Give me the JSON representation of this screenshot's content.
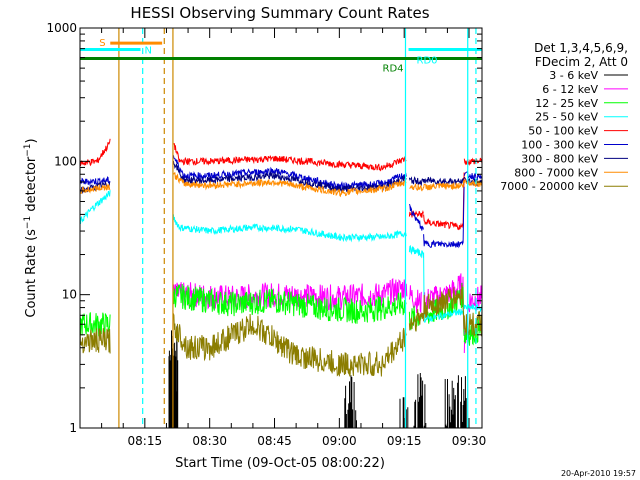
{
  "chart_data": {
    "type": "line",
    "title": "HESSI Observing Summary Count Rates",
    "xlabel": "Start Time (09-Oct-05 08:00:22)",
    "ylabel_main": "Count Rate (s",
    "ylabel_sup1": "−1",
    "ylabel_mid": " detector",
    "ylabel_sup2": "−1",
    "ylabel_end": ")",
    "y_scale": "log",
    "ylim": [
      1,
      1000
    ],
    "xlim_minutes": [
      0,
      93
    ],
    "x_ticks": [
      {
        "label": "08:15",
        "min": 15
      },
      {
        "label": "08:30",
        "min": 30
      },
      {
        "label": "08:45",
        "min": 45
      },
      {
        "label": "09:00",
        "min": 60
      },
      {
        "label": "09:15",
        "min": 75
      },
      {
        "label": "09:30",
        "min": 90
      }
    ],
    "y_ticks": [
      {
        "label": "1",
        "v": 1
      },
      {
        "label": "10",
        "v": 10
      },
      {
        "label": "100",
        "v": 100
      },
      {
        "label": "1000",
        "v": 1000
      }
    ],
    "legend_header": [
      "Det 1,3,4,5,6,9,",
      "FDecim 2, Att 0"
    ],
    "timestamp": "20-Apr-2010 19:57",
    "flags": [
      {
        "label": "S",
        "color": "#ff8c00",
        "start": 7,
        "end": 19,
        "value": 770
      },
      {
        "label": "N",
        "color": "#00ffff",
        "start": 0,
        "end": 14,
        "value": 690
      },
      {
        "label": "RD0",
        "color": "#00ffff",
        "start": 76,
        "end": 93,
        "value": 690
      },
      {
        "label": "RD4",
        "color": "#008000",
        "start": 0,
        "end": 93,
        "value": 590
      }
    ],
    "markers": [
      {
        "min": 9,
        "color": "#cc8800",
        "style": "solid"
      },
      {
        "min": 14.5,
        "color": "#00ffff",
        "style": "dashed"
      },
      {
        "min": 19.5,
        "color": "#cc8800",
        "style": "dashed"
      },
      {
        "min": 21.5,
        "color": "#cc8800",
        "style": "solid"
      },
      {
        "min": 75.3,
        "color": "#00ffff",
        "style": "solid"
      },
      {
        "min": 89.7,
        "color": "#00ffff",
        "style": "solid"
      },
      {
        "min": 91.6,
        "color": "#00ffff",
        "style": "dashed"
      }
    ],
    "segments": [
      [
        0,
        7.3
      ],
      [
        21.5,
        76
      ],
      [
        76,
        79.5
      ],
      [
        79.5,
        88.9
      ],
      [
        88.9,
        93
      ]
    ],
    "series": [
      {
        "name": "3 - 6 keV",
        "color": "#000000",
        "points": [
          [
            20.6,
            1
          ],
          [
            21.6,
            6
          ],
          [
            22.5,
            1
          ],
          [
            88.9,
            1
          ],
          [
            89.5,
            6
          ]
        ],
        "gaps": true
      },
      {
        "name": "6 - 12 keV",
        "color": "#ff00ff",
        "points": [
          [
            21.6,
            10
          ],
          [
            25,
            10
          ],
          [
            35,
            9.5
          ],
          [
            45,
            10
          ],
          [
            60,
            9.5
          ],
          [
            70,
            10
          ],
          [
            75.7,
            11.5
          ],
          [
            76.2,
            10
          ],
          [
            79,
            8.5
          ],
          [
            79.6,
            9
          ],
          [
            85,
            10
          ],
          [
            88.6,
            12
          ],
          [
            88.9,
            4
          ],
          [
            90,
            9
          ],
          [
            93,
            9.5
          ]
        ]
      },
      {
        "name": "12 - 25 keV",
        "color": "#00ff00",
        "points": [
          [
            0,
            6
          ],
          [
            7,
            6
          ],
          [
            21.6,
            10
          ],
          [
            25,
            9.5
          ],
          [
            35,
            8.5
          ],
          [
            45,
            9
          ],
          [
            55,
            8
          ],
          [
            65,
            7.5
          ],
          [
            70,
            8
          ],
          [
            75.5,
            8.5
          ],
          [
            76.2,
            6.5
          ],
          [
            79,
            7
          ],
          [
            79.6,
            7
          ],
          [
            85,
            8
          ],
          [
            88.6,
            10
          ],
          [
            88.9,
            5
          ],
          [
            93,
            5.5
          ]
        ]
      },
      {
        "name": "25 - 50 keV",
        "color": "#00ffff",
        "points": [
          [
            0,
            35
          ],
          [
            3,
            45
          ],
          [
            7,
            58
          ],
          [
            21.6,
            38
          ],
          [
            23,
            32
          ],
          [
            30,
            30
          ],
          [
            40,
            32
          ],
          [
            50,
            31
          ],
          [
            60,
            27
          ],
          [
            70,
            27
          ],
          [
            75.5,
            29
          ],
          [
            76.2,
            22
          ],
          [
            79.5,
            20
          ],
          [
            79.6,
            6.5
          ],
          [
            88.6,
            7.5
          ],
          [
            88.9,
            8
          ],
          [
            93,
            8
          ]
        ]
      },
      {
        "name": "50 - 100 keV",
        "color": "#ff0000",
        "points": [
          [
            0,
            97
          ],
          [
            4,
            100
          ],
          [
            7,
            140
          ],
          [
            21.6,
            140
          ],
          [
            23,
            100
          ],
          [
            30,
            100
          ],
          [
            45,
            105
          ],
          [
            60,
            95
          ],
          [
            70,
            90
          ],
          [
            75.5,
            105
          ],
          [
            76.2,
            40
          ],
          [
            79.5,
            40
          ],
          [
            79.6,
            35
          ],
          [
            88.6,
            32
          ],
          [
            88.9,
            100
          ],
          [
            93,
            100
          ]
        ]
      },
      {
        "name": "100 - 300 keV",
        "color": "#0000cc",
        "points": [
          [
            0,
            70
          ],
          [
            7,
            72
          ],
          [
            21.6,
            110
          ],
          [
            24,
            78
          ],
          [
            30,
            78
          ],
          [
            45,
            85
          ],
          [
            60,
            65
          ],
          [
            70,
            68
          ],
          [
            75.5,
            80
          ],
          [
            76.2,
            45
          ],
          [
            79.5,
            30
          ],
          [
            79.6,
            24
          ],
          [
            88.6,
            24
          ],
          [
            88.9,
            80
          ],
          [
            93,
            75
          ]
        ]
      },
      {
        "name": "300 - 800 keV",
        "color": "#000080",
        "points": [
          [
            0,
            60
          ],
          [
            7,
            68
          ],
          [
            21.6,
            100
          ],
          [
            24,
            72
          ],
          [
            30,
            72
          ],
          [
            45,
            78
          ],
          [
            60,
            62
          ],
          [
            70,
            64
          ],
          [
            75.5,
            75
          ],
          [
            76.2,
            72
          ],
          [
            79.5,
            70
          ],
          [
            79.6,
            72
          ],
          [
            88.6,
            70
          ],
          [
            88.9,
            72
          ],
          [
            93,
            68
          ]
        ]
      },
      {
        "name": "800 - 7000 keV",
        "color": "#ff8c00",
        "points": [
          [
            0,
            60
          ],
          [
            7,
            65
          ],
          [
            21.6,
            80
          ],
          [
            24,
            68
          ],
          [
            30,
            66
          ],
          [
            45,
            70
          ],
          [
            60,
            58
          ],
          [
            70,
            62
          ],
          [
            75.5,
            70
          ],
          [
            76.2,
            65
          ],
          [
            79.5,
            63
          ],
          [
            79.6,
            64
          ],
          [
            88.6,
            66
          ],
          [
            88.9,
            70
          ],
          [
            93,
            68
          ]
        ]
      },
      {
        "name": "7000 - 20000 keV",
        "color": "#8b7d00",
        "points": [
          [
            0,
            4.5
          ],
          [
            7,
            4.5
          ],
          [
            21.6,
            6
          ],
          [
            25,
            4
          ],
          [
            30,
            4
          ],
          [
            40,
            6
          ],
          [
            50,
            3.5
          ],
          [
            60,
            3
          ],
          [
            70,
            3
          ],
          [
            75.5,
            5
          ],
          [
            76.2,
            6
          ],
          [
            79.5,
            7
          ],
          [
            79.6,
            8
          ],
          [
            85,
            9
          ],
          [
            88.6,
            10
          ],
          [
            88.9,
            6
          ],
          [
            93,
            6
          ]
        ]
      }
    ]
  }
}
